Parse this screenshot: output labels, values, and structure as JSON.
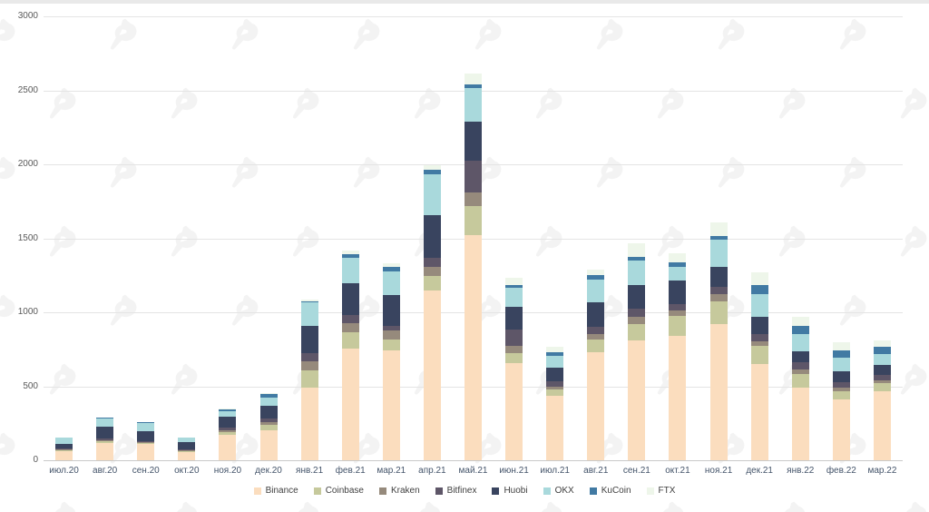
{
  "chart_data": {
    "type": "bar",
    "stacked": true,
    "title": "",
    "xlabel": "",
    "ylabel": "",
    "ylim": [
      0,
      3000
    ],
    "ytick_interval": 500,
    "yticks": [
      0,
      500,
      1000,
      1500,
      2000,
      2500,
      3000
    ],
    "grid": true,
    "legend_position": "bottom",
    "categories": [
      "июл.20",
      "авг.20",
      "сен.20",
      "окт.20",
      "ноя.20",
      "дек.20",
      "янв.21",
      "фев.21",
      "мар.21",
      "апр.21",
      "май.21",
      "июн.21",
      "июл.21",
      "авг.21",
      "сен.21",
      "окт.21",
      "ноя.21",
      "дек.21",
      "янв.22",
      "фев.22",
      "мар.22"
    ],
    "series": [
      {
        "name": "Binance",
        "color": "#fbddbe",
        "values": [
          64,
          119,
          110,
          55,
          170,
          205,
          490,
          755,
          740,
          1150,
          1520,
          656,
          437,
          732,
          808,
          842,
          920,
          652,
          492,
          410,
          468
        ]
      },
      {
        "name": "Coinbase",
        "color": "#c6c99c",
        "values": [
          5,
          11,
          7,
          6,
          20,
          33,
          120,
          113,
          76,
          93,
          195,
          68,
          41,
          82,
          112,
          133,
          153,
          123,
          88,
          57,
          51
        ]
      },
      {
        "name": "Kraken",
        "color": "#968a7c",
        "values": [
          4,
          8,
          5,
          4,
          14,
          20,
          57,
          60,
          62,
          62,
          92,
          49,
          21,
          37,
          51,
          37,
          51,
          31,
          31,
          25,
          21
        ]
      },
      {
        "name": "Bitfinex",
        "color": "#5e5668",
        "values": [
          7,
          12,
          8,
          7,
          20,
          25,
          55,
          53,
          31,
          62,
          216,
          109,
          35,
          51,
          51,
          41,
          45,
          47,
          51,
          37,
          35
        ]
      },
      {
        "name": "Huobi",
        "color": "#39445f",
        "values": [
          29,
          76,
          66,
          49,
          68,
          86,
          185,
          215,
          205,
          291,
          265,
          158,
          92,
          164,
          164,
          160,
          139,
          117,
          72,
          72,
          68
        ]
      },
      {
        "name": "OKX",
        "color": "#a9d9dc",
        "values": [
          42,
          59,
          57,
          33,
          41,
          57,
          158,
          174,
          164,
          273,
          230,
          123,
          82,
          158,
          164,
          96,
          180,
          154,
          119,
          92,
          72
        ]
      },
      {
        "name": "KuCoin",
        "color": "#417aa3",
        "values": [
          3,
          4,
          3,
          2,
          10,
          25,
          10,
          25,
          31,
          31,
          25,
          20,
          25,
          26,
          26,
          27,
          28,
          62,
          55,
          51,
          51
        ]
      },
      {
        "name": "FTX",
        "color": "#eef6ea",
        "values": [
          0,
          0,
          0,
          0,
          5,
          5,
          10,
          20,
          20,
          31,
          72,
          53,
          37,
          41,
          92,
          65,
          92,
          82,
          62,
          55,
          47
        ]
      }
    ]
  },
  "watermark": {
    "icon": "forklog-logo-icon",
    "color": "#f3f3f3"
  },
  "frame": {
    "top_strip_color": "#e9e9e9"
  }
}
